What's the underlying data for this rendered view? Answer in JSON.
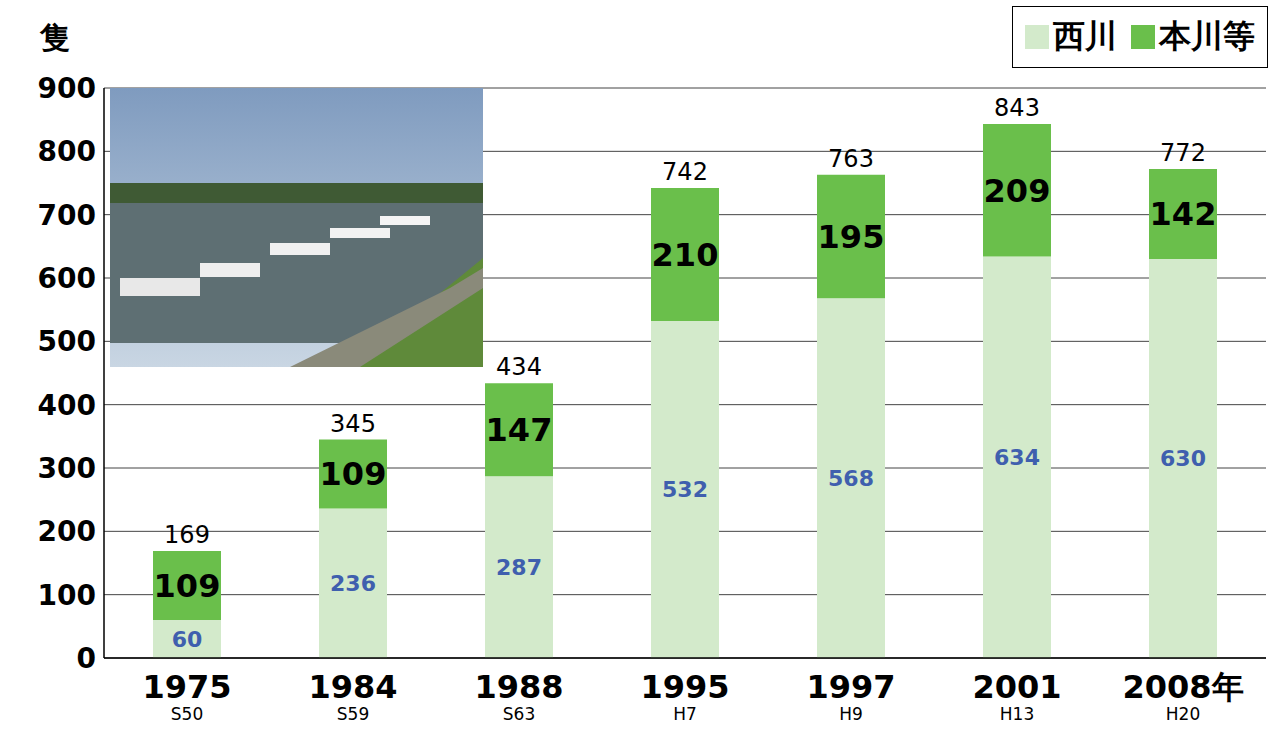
{
  "chart_data": {
    "type": "bar",
    "stacked": true,
    "y_label": "隻",
    "categories": [
      "1975",
      "1984",
      "1988",
      "1995",
      "1997",
      "2001",
      "2008年"
    ],
    "category_sublabels": [
      "S50",
      "S59",
      "S63",
      "H7",
      "H9",
      "H13",
      "H20"
    ],
    "series": [
      {
        "name": "西川",
        "color": "#d3eacb",
        "values": [
          60,
          236,
          287,
          532,
          568,
          634,
          630
        ]
      },
      {
        "name": "本川等",
        "color": "#6abf4b",
        "values": [
          109,
          109,
          147,
          210,
          195,
          209,
          142
        ]
      }
    ],
    "totals": [
      169,
      345,
      434,
      742,
      763,
      843,
      772
    ],
    "ylim": [
      0,
      900
    ],
    "yticks": [
      0,
      100,
      200,
      300,
      400,
      500,
      600,
      700,
      800,
      900
    ],
    "grid": true,
    "legend": "upper right",
    "data_labels": true
  }
}
